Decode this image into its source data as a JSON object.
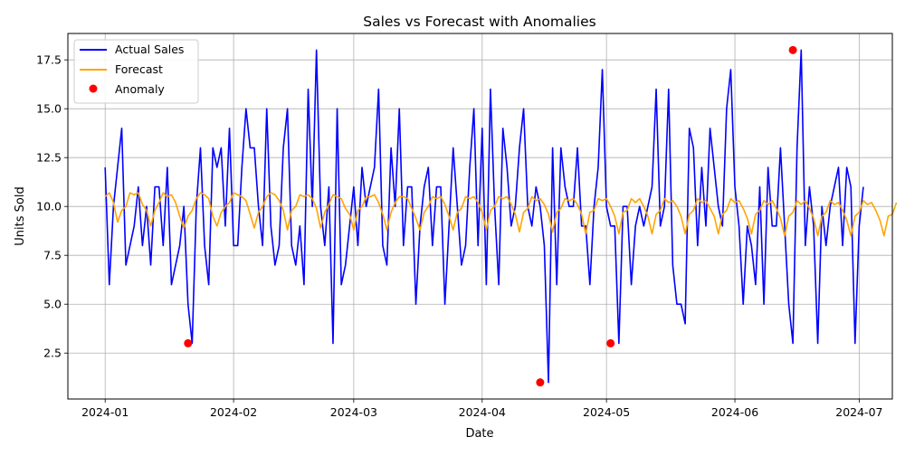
{
  "chart_data": {
    "type": "line",
    "title": "Sales vs Forecast with Anomalies",
    "xlabel": "Date",
    "ylabel": "Units Sold",
    "x_start": "2024-01-01",
    "x_end": "2024-06-30",
    "xlim": [
      "2023-12-23",
      "2024-07-09"
    ],
    "ylim": [
      0.15,
      18.85
    ],
    "grid": true,
    "legend_position": "top-left",
    "x_ticks": [
      "2024-01",
      "2024-02",
      "2024-03",
      "2024-04",
      "2024-05",
      "2024-06",
      "2024-07"
    ],
    "x_tick_dates": [
      "2024-01-01",
      "2024-02-01",
      "2024-03-01",
      "2024-04-01",
      "2024-05-01",
      "2024-06-01",
      "2024-07-01"
    ],
    "y_ticks": [
      "2.5",
      "5.0",
      "7.5",
      "10.0",
      "12.5",
      "15.0",
      "17.5"
    ],
    "y_tick_values": [
      2.5,
      5.0,
      7.5,
      10.0,
      12.5,
      15.0,
      17.5
    ],
    "series": [
      {
        "name": "Actual Sales",
        "color": "#0000ff",
        "values": [
          12,
          6,
          10,
          12,
          14,
          7,
          8,
          9,
          11,
          8,
          10,
          7,
          11,
          11,
          8,
          12,
          6,
          7,
          8,
          10,
          5,
          3,
          10,
          13,
          8,
          6,
          13,
          12,
          13,
          9,
          14,
          8,
          8,
          12,
          15,
          13,
          13,
          10,
          8,
          15,
          9,
          7,
          8,
          13,
          15,
          8,
          7,
          9,
          6,
          16,
          10,
          18,
          10,
          8,
          11,
          3,
          15,
          6,
          7,
          9,
          11,
          8,
          12,
          10,
          11,
          12,
          16,
          8,
          7,
          13,
          10,
          15,
          8,
          11,
          11,
          5,
          9,
          11,
          12,
          8,
          11,
          11,
          5,
          9,
          13,
          10,
          7,
          8,
          12,
          15,
          8,
          14,
          6,
          16,
          10,
          6,
          14,
          12,
          9,
          10,
          13,
          15,
          10,
          9,
          11,
          10,
          8,
          1,
          13,
          6,
          13,
          11,
          10,
          10,
          13,
          9,
          9,
          6,
          10,
          12,
          17,
          10,
          9,
          9,
          3,
          10,
          10,
          6,
          9,
          10,
          9,
          10,
          11,
          16,
          9,
          10,
          16,
          7,
          5,
          5,
          4,
          14,
          13,
          8,
          12,
          9,
          14,
          12,
          10,
          9,
          15,
          17,
          11,
          9,
          5,
          9,
          8,
          6,
          11,
          5,
          12,
          9,
          9,
          13,
          9,
          5,
          3,
          13,
          18,
          8,
          11,
          9,
          3,
          10,
          8,
          10,
          11,
          12,
          8,
          12,
          11,
          3,
          9,
          11
        ]
      },
      {
        "name": "Forecast",
        "color": "#ffa500",
        "values": [
          10.5,
          10.7,
          10.2,
          9.2,
          9.8,
          10.0,
          10.7,
          10.6,
          10.7,
          10.1,
          9.8,
          9.0,
          9.8,
          10.2,
          10.7,
          10.5,
          10.6,
          10.2,
          9.5,
          8.9,
          9.5,
          9.8,
          10.4,
          10.7,
          10.6,
          10.4,
          9.5,
          9.0,
          9.7,
          10.0,
          10.2,
          10.7,
          10.6,
          10.5,
          10.3,
          9.6,
          8.9,
          9.7,
          10.0,
          10.5,
          10.7,
          10.6,
          10.3,
          9.8,
          8.8,
          9.8,
          10.0,
          10.6,
          10.5,
          10.6,
          10.4,
          9.9,
          8.9,
          9.7,
          10.1,
          10.6,
          10.5,
          10.4,
          9.9,
          9.6,
          8.8,
          9.8,
          10.0,
          10.5,
          10.5,
          10.6,
          10.2,
          9.6,
          8.8,
          9.7,
          10.2,
          10.5,
          10.5,
          10.4,
          9.9,
          9.4,
          8.8,
          9.7,
          10.0,
          10.5,
          10.4,
          10.5,
          10.1,
          9.5,
          8.8,
          9.7,
          9.9,
          10.5,
          10.4,
          10.5,
          10.2,
          9.7,
          8.8,
          9.8,
          10.0,
          10.5,
          10.4,
          10.5,
          10.1,
          9.6,
          8.7,
          9.7,
          9.9,
          10.5,
          10.3,
          10.4,
          10.1,
          9.6,
          8.7,
          9.7,
          9.9,
          10.4,
          10.3,
          10.4,
          10.1,
          9.6,
          8.6,
          9.7,
          9.8,
          10.4,
          10.3,
          10.4,
          10.0,
          9.5,
          8.6,
          9.7,
          9.8,
          10.4,
          10.2,
          10.4,
          10.0,
          9.5,
          8.6,
          9.6,
          9.8,
          10.4,
          10.2,
          10.3,
          10.0,
          9.5,
          8.6,
          9.6,
          9.8,
          10.4,
          10.2,
          10.3,
          9.9,
          9.5,
          8.6,
          9.6,
          9.8,
          10.4,
          10.2,
          10.3,
          9.9,
          9.4,
          8.6,
          9.6,
          9.8,
          10.3,
          10.1,
          10.3,
          9.9,
          9.4,
          8.5,
          9.5,
          9.7,
          10.3,
          10.1,
          10.3,
          9.9,
          9.4,
          8.5,
          9.5,
          9.7,
          10.3,
          10.1,
          10.2,
          9.8,
          9.3,
          8.5,
          9.5,
          9.7,
          10.3,
          10.1,
          10.2,
          9.8,
          9.3,
          8.5,
          9.5,
          9.6,
          10.2
        ]
      },
      {
        "name": "Anomaly",
        "color": "#ff0000",
        "points": [
          {
            "x": "2024-01-21",
            "y": 3
          },
          {
            "x": "2024-04-15",
            "y": 1
          },
          {
            "x": "2024-05-02",
            "y": 3
          },
          {
            "x": "2024-06-15",
            "y": 18
          }
        ]
      }
    ]
  }
}
